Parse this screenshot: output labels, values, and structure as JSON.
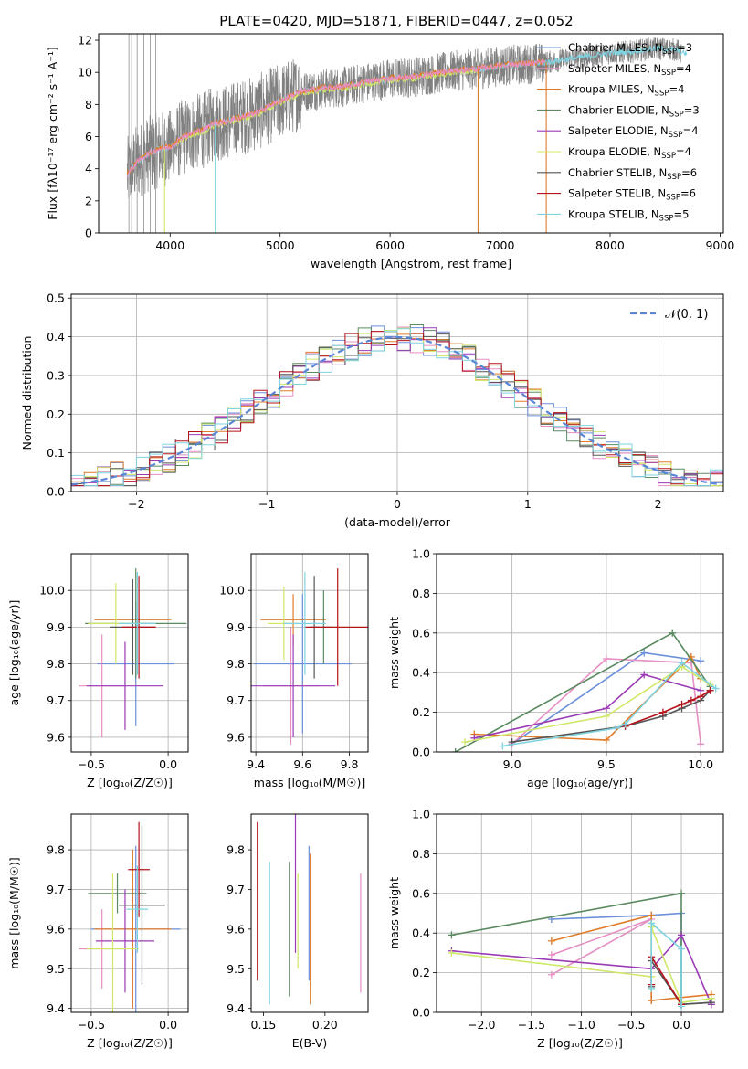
{
  "colors": {
    "chab_miles": "#6b8fdb",
    "salp_miles": "#e58fc4",
    "krou_miles": "#e07b2a",
    "chab_elodie": "#5a8a60",
    "salp_elodie": "#9b3ab5",
    "krou_elodie": "#cfe86a",
    "chab_stelib": "#555555",
    "salp_stelib": "#b5121b",
    "krou_stelib": "#7fd3e0"
  },
  "chart_data": [
    {
      "id": "spectrum",
      "type": "line",
      "title": "PLATE=0420, MJD=51871, FIBERID=0447, z=0.052",
      "xlabel": "wavelength [Angstrom, rest frame]",
      "ylabel": "Flux [fλ10⁻¹⁷ erg cm⁻² s⁻¹ A⁻¹]",
      "xlim": [
        3350,
        9030
      ],
      "ylim": [
        0,
        12.4
      ],
      "xticks": [
        4000,
        5000,
        6000,
        7000,
        8000,
        9000
      ],
      "yticks": [
        0,
        2,
        4,
        6,
        8,
        10,
        12
      ],
      "grid": false,
      "legend_position": "top-right",
      "data_curve": {
        "wavelength": [
          3610,
          3700,
          3800,
          3900,
          4000,
          4100,
          4200,
          4300,
          4400,
          4500,
          4600,
          4700,
          4800,
          4900,
          5000,
          5200,
          5400,
          5600,
          5800,
          6000,
          6200,
          6400,
          6600,
          6800,
          7000,
          7200,
          7400,
          7600,
          7800,
          8000,
          8200,
          8400,
          8600,
          8650
        ],
        "flux": [
          3.6,
          4.4,
          4.9,
          5.2,
          5.3,
          5.9,
          6.2,
          6.4,
          6.8,
          6.9,
          7.1,
          7.3,
          7.5,
          7.9,
          8.2,
          8.8,
          9.0,
          9.1,
          9.4,
          9.6,
          9.7,
          9.9,
          10.1,
          10.2,
          10.4,
          10.5,
          10.6,
          10.8,
          11.0,
          11.2,
          11.3,
          11.5,
          11.4,
          11.2
        ],
        "noise": 1.6
      },
      "legend": [
        {
          "label": "Chabrier MILES, N",
          "sub": "SSP",
          "count": "=3",
          "color_key": "chab_miles"
        },
        {
          "label": "Salpeter MILES, N",
          "sub": "SSP",
          "count": "=4",
          "color_key": "salp_miles"
        },
        {
          "label": "Kroupa MILES, N",
          "sub": "SSP",
          "count": "=4",
          "color_key": "krou_miles"
        },
        {
          "label": "Chabrier ELODIE, N",
          "sub": "SSP",
          "count": "=3",
          "color_key": "chab_elodie"
        },
        {
          "label": "Salpeter ELODIE, N",
          "sub": "SSP",
          "count": "=4",
          "color_key": "salp_elodie"
        },
        {
          "label": "Kroupa ELODIE, N",
          "sub": "SSP",
          "count": "=4",
          "color_key": "krou_elodie"
        },
        {
          "label": "Chabrier STELIB, N",
          "sub": "SSP",
          "count": "=6",
          "color_key": "chab_stelib"
        },
        {
          "label": "Salpeter STELIB, N",
          "sub": "SSP",
          "count": "=6",
          "color_key": "salp_stelib"
        },
        {
          "label": "Kroupa STELIB, N",
          "sub": "SSP",
          "count": "=5",
          "color_key": "krou_stelib"
        }
      ],
      "model_segments": [
        {
          "color_key": "krou_stelib",
          "start": 3610,
          "end": 8700,
          "offset": 0.0
        },
        {
          "color_key": "krou_elodie",
          "start": 4050,
          "end": 6800,
          "offset": -0.1
        },
        {
          "color_key": "krou_miles",
          "start": 3610,
          "end": 7410,
          "offset": 0.05
        },
        {
          "color_key": "salp_miles",
          "start": 3610,
          "end": 7410,
          "offset": 0.02
        }
      ],
      "drop_lines": [
        {
          "x": 3950,
          "color_key": "krou_elodie"
        },
        {
          "x": 4410,
          "color_key": "krou_stelib"
        },
        {
          "x": 6800,
          "color_key": "krou_miles"
        },
        {
          "x": 7420,
          "color_key": "krou_miles"
        }
      ]
    },
    {
      "id": "residuals",
      "type": "histogram",
      "xlabel": "(data-model)/error",
      "ylabel": "Normed distribution",
      "xlim": [
        -2.5,
        2.5
      ],
      "ylim": [
        0,
        0.51
      ],
      "xticks": [
        -2,
        -1,
        0,
        1,
        2
      ],
      "yticks": [
        0.0,
        0.1,
        0.2,
        0.3,
        0.4,
        0.5
      ],
      "grid": true,
      "legend_position": "top-right",
      "legend": [
        {
          "label": "𝒩(0, 1)",
          "color": "#5b86d6",
          "style": "dashed"
        }
      ],
      "bin_width": 0.1,
      "reference": {
        "mean": 0,
        "sigma": 1
      }
    },
    {
      "id": "age_vs_Z",
      "type": "errorbar",
      "xlabel": "Z [log₁₀(Z/Z☉)]",
      "ylabel": "age  [log₁₀(age/yr)]",
      "xlim": [
        -0.63,
        0.13
      ],
      "ylim": [
        9.56,
        10.1
      ],
      "xticks": [
        -0.5,
        0.0
      ],
      "yticks": [
        9.6,
        9.7,
        9.8,
        9.9,
        10.0
      ],
      "grid": true,
      "points": [
        {
          "color_key": "chab_miles",
          "x": -0.21,
          "xerr": 0.25,
          "y": 9.8,
          "yerr": 0.17
        },
        {
          "color_key": "salp_miles",
          "x": -0.43,
          "xerr": 0.15,
          "y": 9.74,
          "yerr": 0.14
        },
        {
          "color_key": "krou_miles",
          "x": -0.23,
          "xerr": 0.25,
          "y": 9.92,
          "yerr": 0.11
        },
        {
          "color_key": "chab_elodie",
          "x": -0.21,
          "xerr": 0.33,
          "y": 9.91,
          "yerr": 0.15
        },
        {
          "color_key": "salp_elodie",
          "x": -0.28,
          "xerr": 0.25,
          "y": 9.74,
          "yerr": 0.12
        },
        {
          "color_key": "krou_elodie",
          "x": -0.34,
          "xerr": 0.18,
          "y": 9.91,
          "yerr": 0.11
        },
        {
          "color_key": "chab_stelib",
          "x": -0.23,
          "xerr": 0.15,
          "y": 9.9,
          "yerr": 0.13
        },
        {
          "color_key": "salp_stelib",
          "x": -0.19,
          "xerr": 0.11,
          "y": 9.9,
          "yerr": 0.14
        },
        {
          "color_key": "krou_stelib",
          "x": -0.2,
          "xerr": 0.12,
          "y": 9.91,
          "yerr": 0.14
        }
      ]
    },
    {
      "id": "age_vs_mass",
      "type": "errorbar",
      "xlabel": "mass [log₁₀(M/M☉)]",
      "ylabel": "",
      "xlim": [
        9.38,
        9.88
      ],
      "ylim": [
        9.56,
        10.1
      ],
      "xticks": [
        9.4,
        9.6,
        9.8
      ],
      "yticks": [
        9.6,
        9.7,
        9.8,
        9.9,
        10.0
      ],
      "grid": true,
      "points": [
        {
          "color_key": "chab_miles",
          "x": 9.6,
          "xerr": 0.21,
          "y": 9.8,
          "yerr": 0.19
        },
        {
          "color_key": "salp_miles",
          "x": 9.55,
          "xerr": 0.12,
          "y": 9.74,
          "yerr": 0.16
        },
        {
          "color_key": "krou_miles",
          "x": 9.56,
          "xerr": 0.14,
          "y": 9.92,
          "yerr": 0.07
        },
        {
          "color_key": "chab_elodie",
          "x": 9.69,
          "xerr": 0.04,
          "y": 9.9,
          "yerr": 0.1
        },
        {
          "color_key": "salp_elodie",
          "x": 9.56,
          "xerr": 0.18,
          "y": 9.74,
          "yerr": 0.14
        },
        {
          "color_key": "krou_elodie",
          "x": 9.52,
          "xerr": 0.07,
          "y": 9.91,
          "yerr": 0.1
        },
        {
          "color_key": "chab_stelib",
          "x": 9.65,
          "xerr": 0.02,
          "y": 9.9,
          "yerr": 0.14
        },
        {
          "color_key": "salp_stelib",
          "x": 9.75,
          "xerr": 0.14,
          "y": 9.9,
          "yerr": 0.16
        },
        {
          "color_key": "krou_stelib",
          "x": 9.61,
          "xerr": 0.09,
          "y": 9.91,
          "yerr": 0.14
        }
      ]
    },
    {
      "id": "mass_weight_vs_age",
      "type": "line",
      "xlabel": "age  [log₁₀(age/yr)]",
      "ylabel": "mass weight",
      "xlim": [
        8.6,
        10.12
      ],
      "ylim": [
        0,
        1.0
      ],
      "xticks": [
        9.0,
        9.5,
        10.0
      ],
      "yticks": [
        0.0,
        0.2,
        0.4,
        0.6,
        0.8,
        1.0
      ],
      "grid": true,
      "series": [
        {
          "color_key": "chab_miles",
          "x": [
            9.0,
            9.7,
            10.0
          ],
          "y": [
            0.04,
            0.5,
            0.46
          ]
        },
        {
          "color_key": "salp_miles",
          "x": [
            9.0,
            9.5,
            9.95,
            10.0
          ],
          "y": [
            0.04,
            0.47,
            0.45,
            0.04
          ]
        },
        {
          "color_key": "krou_miles",
          "x": [
            8.8,
            9.5,
            9.95,
            10.0
          ],
          "y": [
            0.09,
            0.06,
            0.48,
            0.37
          ]
        },
        {
          "color_key": "chab_elodie",
          "x": [
            8.7,
            9.85,
            10.05
          ],
          "y": [
            0.0,
            0.6,
            0.33
          ]
        },
        {
          "color_key": "salp_elodie",
          "x": [
            8.8,
            9.5,
            9.7,
            10.0
          ],
          "y": [
            0.07,
            0.22,
            0.39,
            0.31
          ]
        },
        {
          "color_key": "krou_elodie",
          "x": [
            8.75,
            9.5,
            9.9,
            10.05
          ],
          "y": [
            0.05,
            0.18,
            0.43,
            0.34
          ]
        },
        {
          "color_key": "chab_stelib",
          "x": [
            9.0,
            9.6,
            9.8,
            9.9,
            10.0,
            10.05
          ],
          "y": [
            0.05,
            0.13,
            0.18,
            0.22,
            0.26,
            0.31
          ]
        },
        {
          "color_key": "salp_stelib",
          "x": [
            9.6,
            9.8,
            9.9,
            9.95,
            10.0,
            10.05
          ],
          "y": [
            0.13,
            0.2,
            0.24,
            0.26,
            0.28,
            0.31
          ]
        },
        {
          "color_key": "krou_stelib",
          "x": [
            8.95,
            9.55,
            9.6,
            9.9,
            10.08
          ],
          "y": [
            0.03,
            0.12,
            0.14,
            0.45,
            0.32
          ]
        }
      ]
    },
    {
      "id": "mass_vs_Z",
      "type": "errorbar",
      "xlabel": "Z [log₁₀(Z/Z☉)]",
      "ylabel": "mass [log₁₀(M/M☉)]",
      "xlim": [
        -0.63,
        0.13
      ],
      "ylim": [
        9.39,
        9.89
      ],
      "xticks": [
        -0.5,
        0.0
      ],
      "yticks": [
        9.4,
        9.5,
        9.6,
        9.7,
        9.8
      ],
      "grid": true,
      "points": [
        {
          "color_key": "chab_miles",
          "x": -0.21,
          "xerr": 0.29,
          "y": 9.6,
          "yerr": 0.21
        },
        {
          "color_key": "salp_miles",
          "x": -0.43,
          "xerr": 0.15,
          "y": 9.55,
          "yerr": 0.1
        },
        {
          "color_key": "krou_miles",
          "x": -0.23,
          "xerr": 0.25,
          "y": 9.6,
          "yerr": 0.2
        },
        {
          "color_key": "chab_elodie",
          "x": -0.33,
          "xerr": 0.19,
          "y": 9.69,
          "yerr": 0.05
        },
        {
          "color_key": "salp_elodie",
          "x": -0.28,
          "xerr": 0.19,
          "y": 9.57,
          "yerr": 0.13
        },
        {
          "color_key": "krou_elodie",
          "x": -0.36,
          "xerr": 0.17,
          "y": 9.55,
          "yerr": 0.19
        },
        {
          "color_key": "chab_stelib",
          "x": -0.17,
          "xerr": 0.15,
          "y": 9.66,
          "yerr": 0.2
        },
        {
          "color_key": "salp_stelib",
          "x": -0.19,
          "xerr": 0.07,
          "y": 9.75,
          "yerr": 0.12
        },
        {
          "color_key": "krou_stelib",
          "x": -0.2,
          "xerr": 0.07,
          "y": 9.65,
          "yerr": 0.11
        }
      ]
    },
    {
      "id": "mass_vs_ebv",
      "type": "errorbar",
      "xlabel": "E(B-V)",
      "ylabel": "",
      "xlim": [
        0.14,
        0.235
      ],
      "ylim": [
        9.39,
        9.89
      ],
      "xticks": [
        0.15,
        0.2
      ],
      "yticks": [
        9.4,
        9.5,
        9.6,
        9.7,
        9.8
      ],
      "grid": false,
      "points": [
        {
          "color_key": "salp_stelib",
          "x": 0.145,
          "xerr": 0,
          "y": 9.67,
          "yerr": 0.2
        },
        {
          "color_key": "krou_stelib",
          "x": 0.155,
          "xerr": 0,
          "y": 9.59,
          "yerr": 0.18
        },
        {
          "color_key": "chab_elodie",
          "x": 0.171,
          "xerr": 0,
          "y": 9.6,
          "yerr": 0.17
        },
        {
          "color_key": "salp_elodie",
          "x": 0.176,
          "xerr": 0,
          "y": 9.72,
          "yerr": 0.18
        },
        {
          "color_key": "krou_elodie",
          "x": 0.178,
          "xerr": 0,
          "y": 9.62,
          "yerr": 0.12
        },
        {
          "color_key": "chab_miles",
          "x": 0.187,
          "xerr": 0,
          "y": 9.64,
          "yerr": 0.17
        },
        {
          "color_key": "krou_miles",
          "x": 0.188,
          "xerr": 0,
          "y": 9.6,
          "yerr": 0.19
        },
        {
          "color_key": "salp_miles",
          "x": 0.229,
          "xerr": 0,
          "y": 9.59,
          "yerr": 0.15
        }
      ]
    },
    {
      "id": "mass_weight_vs_Z",
      "type": "line",
      "xlabel": "Z [log₁₀(Z/Z☉)]",
      "ylabel": "mass weight",
      "xlim": [
        -2.45,
        0.42
      ],
      "ylim": [
        0,
        1.0
      ],
      "xticks": [
        -2.0,
        -1.5,
        -1.0,
        -0.5,
        0.0
      ],
      "yticks": [
        0.0,
        0.2,
        0.4,
        0.6,
        0.8,
        1.0
      ],
      "grid": true,
      "series": [
        {
          "color_key": "chab_miles",
          "x": [
            -1.3,
            -0.3,
            0.0,
            0.0
          ],
          "y": [
            0.47,
            0.49,
            0.5,
            0.04
          ]
        },
        {
          "color_key": "salp_miles",
          "x": [
            -1.3,
            -0.3,
            -1.3
          ],
          "y": [
            0.29,
            0.47,
            0.19
          ]
        },
        {
          "color_key": "krou_miles",
          "x": [
            -1.3,
            -0.3,
            -0.3,
            0.3,
            -0.3
          ],
          "y": [
            0.36,
            0.49,
            0.06,
            0.09,
            0.06
          ]
        },
        {
          "color_key": "chab_elodie",
          "x": [
            -2.3,
            0.0,
            0.0,
            0.3
          ],
          "y": [
            0.39,
            0.6,
            0.04,
            0.05
          ]
        },
        {
          "color_key": "salp_elodie",
          "x": [
            -2.3,
            -0.3,
            0.0,
            0.3
          ],
          "y": [
            0.31,
            0.22,
            0.39,
            0.04
          ]
        },
        {
          "color_key": "krou_elodie",
          "x": [
            -2.3,
            -0.3,
            -0.3,
            0.0,
            0.3
          ],
          "y": [
            0.3,
            0.18,
            0.43,
            0.05,
            0.07
          ]
        },
        {
          "color_key": "chab_stelib",
          "x": [
            -0.3,
            -0.3,
            0.0,
            0.3
          ],
          "y": [
            0.13,
            0.26,
            0.04,
            0.05
          ]
        },
        {
          "color_key": "salp_stelib",
          "x": [
            -0.3,
            -0.3,
            0.0
          ],
          "y": [
            0.14,
            0.28,
            0.04
          ]
        },
        {
          "color_key": "krou_stelib",
          "x": [
            -0.3,
            -0.3,
            0.0,
            0.0
          ],
          "y": [
            0.12,
            0.45,
            0.32,
            0.03
          ]
        }
      ]
    }
  ]
}
